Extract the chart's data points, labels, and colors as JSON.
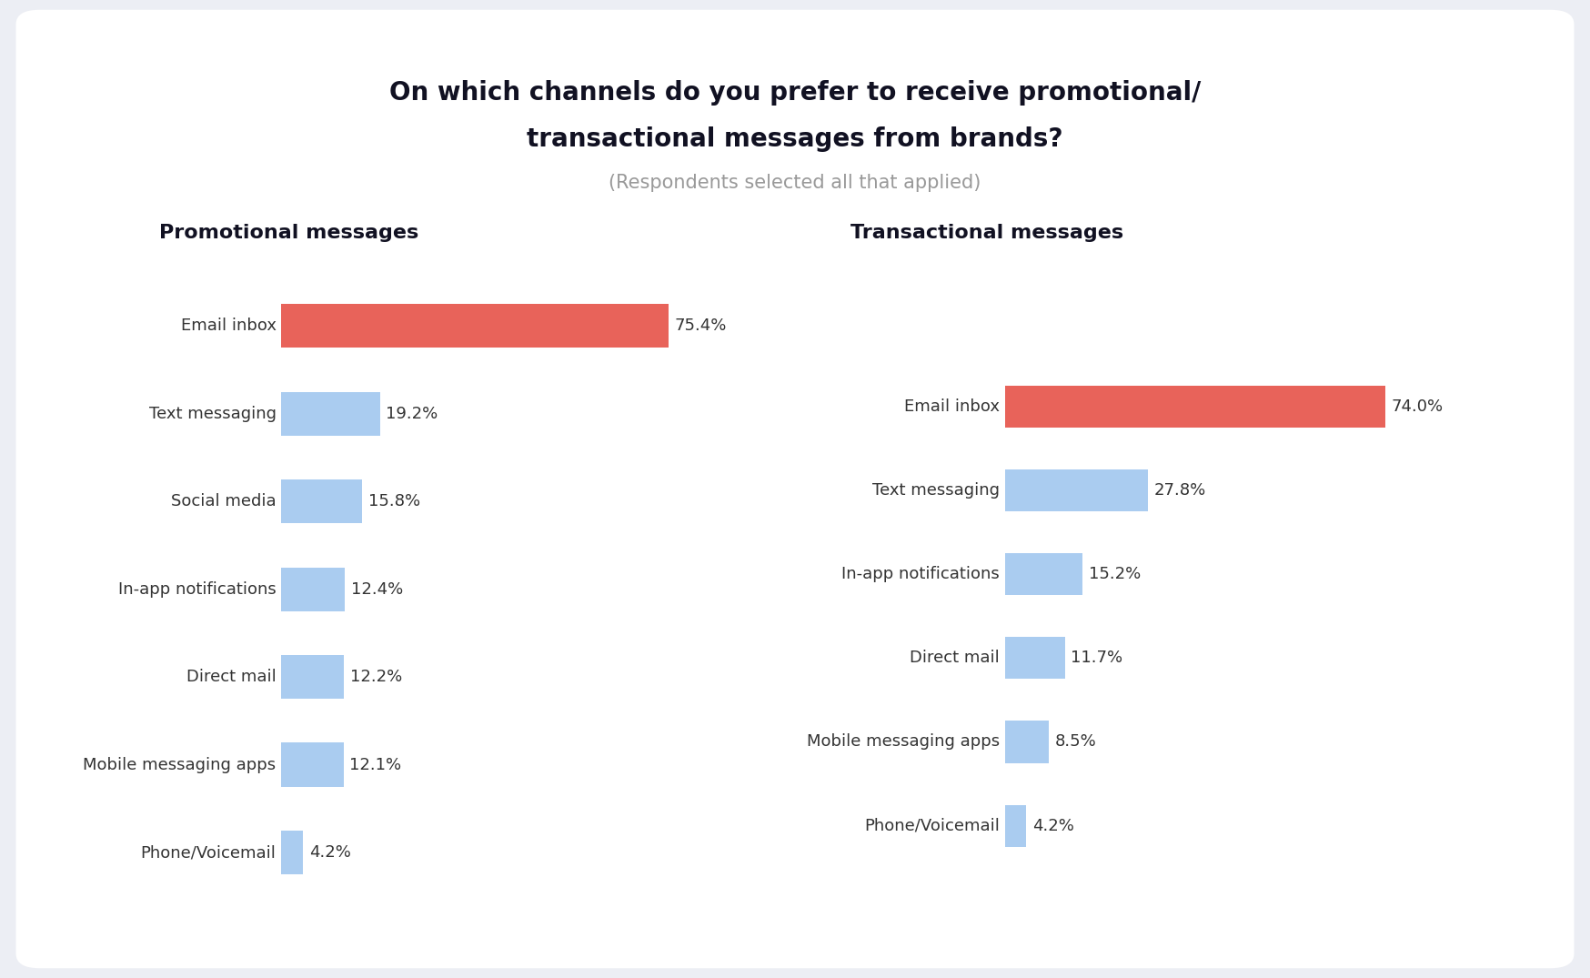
{
  "title_line1": "On which channels do you prefer to receive promotional/",
  "title_line2": "transactional messages from brands?",
  "subtitle": "(Respondents selected all that applied)",
  "promo_header": "Promotional messages",
  "trans_header": "Transactional messages",
  "promo_categories": [
    "Email inbox",
    "Text messaging",
    "Social media",
    "In-app notifications",
    "Direct mail",
    "Mobile messaging apps",
    "Phone/Voicemail"
  ],
  "promo_values": [
    75.4,
    19.2,
    15.8,
    12.4,
    12.2,
    12.1,
    4.2
  ],
  "trans_categories": [
    "Email inbox",
    "Text messaging",
    "In-app notifications",
    "Direct mail",
    "Mobile messaging apps",
    "Phone/Voicemail"
  ],
  "trans_values": [
    74.0,
    27.8,
    15.2,
    11.7,
    8.5,
    4.2
  ],
  "bar_color_highlight": "#E8635A",
  "bar_color_normal": "#AACCF0",
  "background_color": "#ECEEF4",
  "card_color": "#FFFFFF",
  "title_color": "#111122",
  "subtitle_color": "#999999",
  "header_color": "#111122",
  "label_color": "#333333",
  "value_color": "#333333",
  "logo_color": "#E8635A",
  "title_fontsize": 20,
  "subtitle_fontsize": 15,
  "header_fontsize": 16,
  "label_fontsize": 13,
  "value_fontsize": 13
}
